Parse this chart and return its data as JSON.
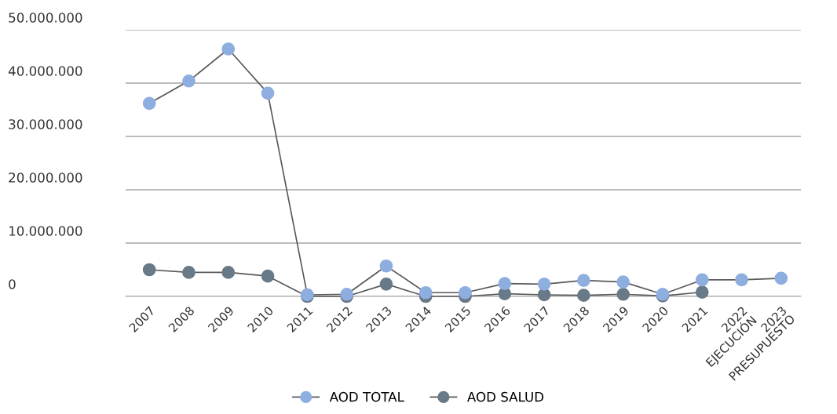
{
  "chart_data": {
    "type": "line",
    "categories": [
      "2007",
      "2008",
      "2009",
      "2010",
      "2011",
      "2012",
      "2013",
      "2014",
      "2015",
      "2016",
      "2017",
      "2018",
      "2019",
      "2020",
      "2021",
      "2022\nEJECUCIÓN",
      "2023\nPRESUPUESTO"
    ],
    "series": [
      {
        "name": "AOD TOTAL",
        "color": "#8eaee0",
        "values": [
          36200000,
          40400000,
          46400000,
          38100000,
          300000,
          400000,
          5700000,
          700000,
          700000,
          2400000,
          2300000,
          3000000,
          2700000,
          400000,
          3100000,
          3100000,
          3400000
        ]
      },
      {
        "name": "AOD SALUD",
        "color": "#687987",
        "values": [
          5000000,
          4500000,
          4500000,
          3800000,
          0,
          0,
          2300000,
          0,
          0,
          500000,
          300000,
          200000,
          400000,
          100000,
          800000,
          null,
          null
        ]
      }
    ],
    "ylim": [
      0,
      50000000
    ],
    "yticks": [
      {
        "value": 0,
        "label": "0"
      },
      {
        "value": 10000000,
        "label": "10.000.000"
      },
      {
        "value": 20000000,
        "label": "20.000.000"
      },
      {
        "value": 30000000,
        "label": "30.000.000"
      },
      {
        "value": 40000000,
        "label": "40.000.000"
      },
      {
        "value": 50000000,
        "label": "50.000.000"
      }
    ],
    "grid": "y",
    "legend": "bottom",
    "marker": "circle",
    "line_style": "solid"
  }
}
